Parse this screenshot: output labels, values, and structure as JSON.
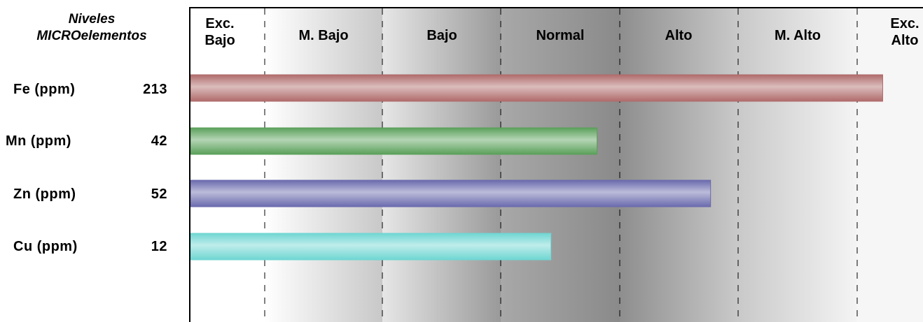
{
  "header": {
    "title_line1": "Niveles",
    "title_line2": "MICROelementos"
  },
  "chart_data": {
    "type": "bar",
    "orientation": "horizontal",
    "categories": [
      "Fe (ppm)",
      "Mn (ppm)",
      "Zn (ppm)",
      "Cu (ppm)"
    ],
    "values": [
      213,
      42,
      52,
      12
    ],
    "bar_level_fraction": [
      0.945,
      0.555,
      0.71,
      0.492
    ],
    "bar_colors": [
      "#b06b6b",
      "#5aa05a",
      "#6a6aae",
      "#6fd6d2"
    ],
    "level_labels": [
      "Exc. Bajo",
      "M. Bajo",
      "Bajo",
      "Normal",
      "Alto",
      "M. Alto",
      "Exc. Alto"
    ],
    "grid": "dashed-vertical"
  }
}
